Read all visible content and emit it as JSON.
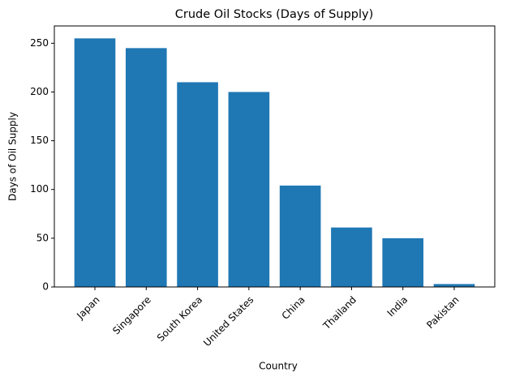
{
  "chart_data": {
    "type": "bar",
    "title": "Crude Oil Stocks (Days of Supply)",
    "x_label": "Country",
    "y_label": "Days of Oil Supply",
    "categories": [
      "Japan",
      "Singapore",
      "South Korea",
      "United States",
      "China",
      "Thailand",
      "India",
      "Pakistan"
    ],
    "values": [
      255,
      245,
      210,
      200,
      104,
      61,
      50,
      3
    ],
    "color": "#1f77b4",
    "ylim": [
      0,
      267.75
    ],
    "yticks": [
      0,
      50,
      100,
      150,
      200,
      250
    ],
    "grid": false
  }
}
